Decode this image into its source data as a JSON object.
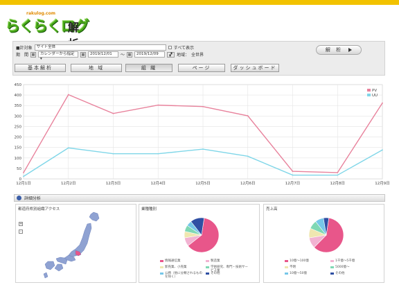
{
  "logo": {
    "main": "らくらくログ",
    "sub": "解析",
    "url": "rakulog.com"
  },
  "filter": {
    "target_label": "■計対象",
    "target_value": "サイト全体",
    "show_all_label": "すべて表示",
    "period_label": "期　間",
    "period_mode": "カレンダーから指定",
    "date_from": "2019/12/01",
    "date_sep": "～",
    "date_to": "2019/12/09",
    "region_label": "地域：",
    "region_value": "全世界",
    "analyze_label": "解 析"
  },
  "tabs": [
    {
      "label": "基本解析"
    },
    {
      "label": "地 域"
    },
    {
      "label": "組 織"
    },
    {
      "label": "ページ"
    },
    {
      "label": "ダッシュボード"
    }
  ],
  "colors": {
    "pv": "#e8829c",
    "uu": "#7fd6e8",
    "accent": "#f2c200"
  },
  "chart_data": {
    "type": "line",
    "categories": [
      "12月1日",
      "12月2日",
      "12月3日",
      "12月4日",
      "12月5日",
      "12月6日",
      "12月7日",
      "12月8日",
      "12月9日"
    ],
    "series": [
      {
        "name": "PV",
        "values": [
          30,
          402,
          312,
          352,
          345,
          301,
          36,
          30,
          362
        ]
      },
      {
        "name": "UU",
        "values": [
          12,
          148,
          120,
          120,
          142,
          108,
          18,
          18,
          138
        ]
      }
    ],
    "yticks": [
      0,
      50,
      100,
      150,
      200,
      250,
      300,
      350,
      400,
      450
    ],
    "ylim": [
      0,
      450
    ],
    "grid": true,
    "legend": "top-right"
  },
  "details": {
    "section_title": "詳細分析",
    "map_title": "都道府県別組織アクセス",
    "industry_title": "業種種別",
    "sales_title": "売上高",
    "industry_legend": [
      {
        "label": "情報通信業",
        "color": "#e8568a"
      },
      {
        "label": "製造業",
        "color": "#f2b3d2"
      },
      {
        "label": "卸売業、小売業",
        "color": "#efe7b0"
      },
      {
        "label": "学術研究、専門・技術サービス業",
        "color": "#7fd8b4"
      },
      {
        "label": "公務（他に分類されるものを除く）",
        "color": "#76c7e8"
      },
      {
        "label": "その他",
        "color": "#2f4fa3"
      }
    ],
    "sales_legend": [
      {
        "label": "10億～100億",
        "color": "#e8568a"
      },
      {
        "label": "1千億～5千億",
        "color": "#f2b3d2"
      },
      {
        "label": "不明",
        "color": "#efe7b0"
      },
      {
        "label": "5000億～",
        "color": "#7fd8b4"
      },
      {
        "label": "10億～50億",
        "color": "#76c7e8"
      },
      {
        "label": "その他",
        "color": "#2f4fa3"
      }
    ],
    "industry_pie": [
      62,
      8,
      6,
      6,
      5,
      13
    ],
    "sales_pie": [
      60,
      10,
      9,
      8,
      8,
      5
    ]
  }
}
